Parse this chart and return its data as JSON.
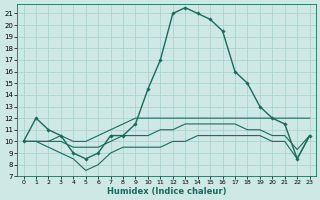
{
  "xlabel": "Humidex (Indice chaleur)",
  "background_color": "#cde8e5",
  "grid_color": "#aacfcc",
  "line_color": "#1a6b5a",
  "xlim": [
    -0.5,
    23.5
  ],
  "ylim": [
    7,
    21.8
  ],
  "yticks": [
    7,
    8,
    9,
    10,
    11,
    12,
    13,
    14,
    15,
    16,
    17,
    18,
    19,
    20,
    21
  ],
  "xticks": [
    0,
    1,
    2,
    3,
    4,
    5,
    6,
    7,
    8,
    9,
    10,
    11,
    12,
    13,
    14,
    15,
    16,
    17,
    18,
    19,
    20,
    21,
    22,
    23
  ],
  "series": [
    {
      "x": [
        0,
        1,
        2,
        3,
        4,
        5,
        6,
        7,
        8,
        9,
        10,
        11,
        12,
        13,
        14,
        15,
        16,
        17,
        18,
        19,
        20,
        21,
        22,
        23
      ],
      "y": [
        10,
        12,
        11,
        10.5,
        9,
        8.5,
        9,
        10.5,
        10.5,
        11.5,
        14.5,
        17,
        21,
        21.5,
        21,
        20.5,
        19.5,
        16,
        15,
        13,
        12,
        11.5,
        8.5,
        10.5
      ],
      "has_markers": true,
      "lw": 1.0
    },
    {
      "x": [
        0,
        1,
        2,
        3,
        4,
        5,
        6,
        7,
        8,
        9,
        10,
        11,
        12,
        13,
        14,
        15,
        16,
        17,
        18,
        19,
        20,
        21,
        22,
        23
      ],
      "y": [
        10,
        10,
        10,
        10.5,
        10,
        10,
        10.5,
        11,
        11.5,
        12,
        12,
        12,
        12,
        12,
        12,
        12,
        12,
        12,
        12,
        12,
        12,
        12,
        12,
        12
      ],
      "has_markers": false,
      "lw": 0.8
    },
    {
      "x": [
        0,
        1,
        2,
        3,
        4,
        5,
        6,
        7,
        8,
        9,
        10,
        11,
        12,
        13,
        14,
        15,
        16,
        17,
        18,
        19,
        20,
        21,
        22,
        23
      ],
      "y": [
        10,
        10,
        10,
        10,
        9.5,
        9.5,
        9.5,
        10,
        10.5,
        10.5,
        10.5,
        11,
        11,
        11.5,
        11.5,
        11.5,
        11.5,
        11.5,
        11,
        11,
        10.5,
        10.5,
        9.3,
        10.5
      ],
      "has_markers": false,
      "lw": 0.8
    },
    {
      "x": [
        0,
        1,
        2,
        3,
        4,
        5,
        6,
        7,
        8,
        9,
        10,
        11,
        12,
        13,
        14,
        15,
        16,
        17,
        18,
        19,
        20,
        21,
        22,
        23
      ],
      "y": [
        10,
        10,
        9.5,
        9,
        8.5,
        7.5,
        8,
        9,
        9.5,
        9.5,
        9.5,
        9.5,
        10,
        10,
        10.5,
        10.5,
        10.5,
        10.5,
        10.5,
        10.5,
        10,
        10,
        8.5,
        10.5
      ],
      "has_markers": false,
      "lw": 0.8
    }
  ]
}
